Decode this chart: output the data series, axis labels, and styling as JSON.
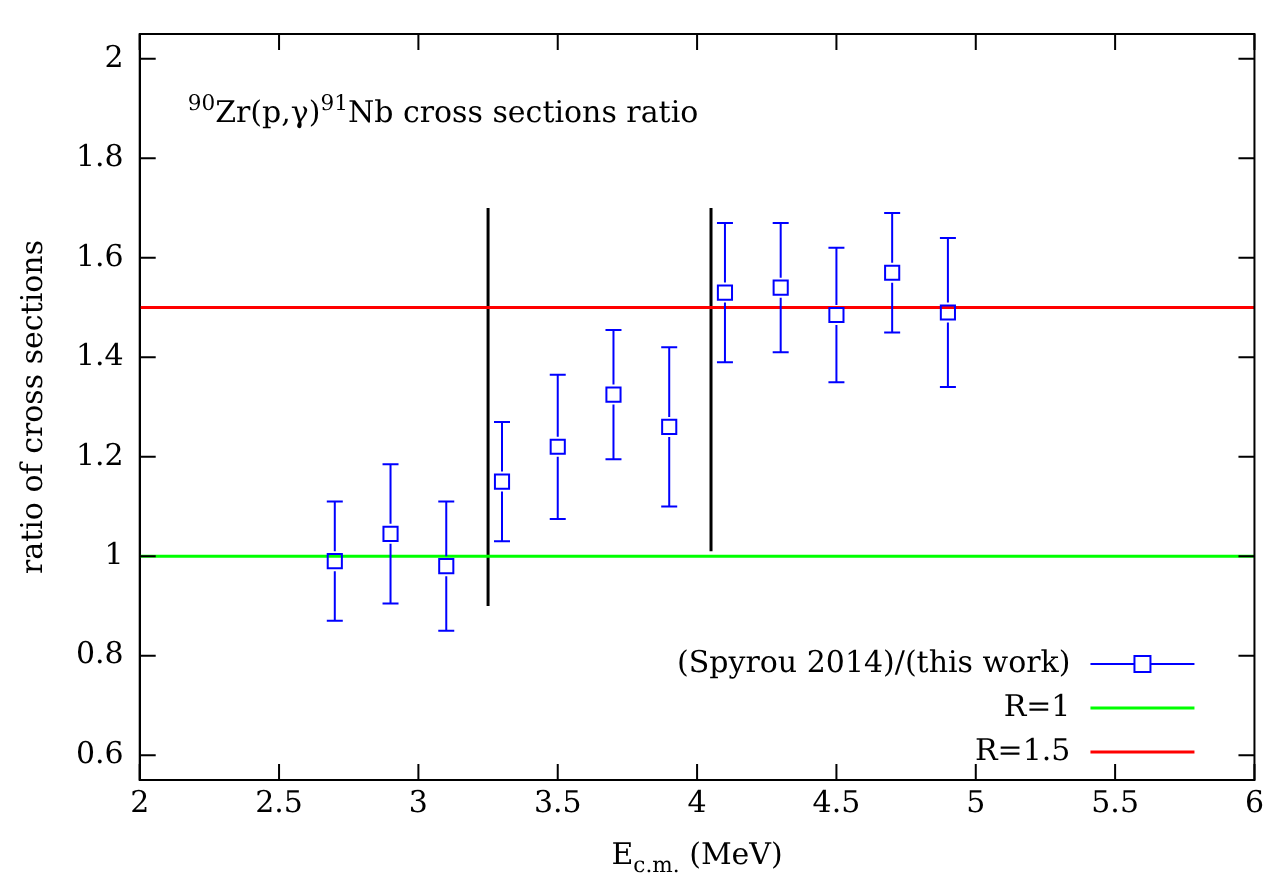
{
  "chart_data": {
    "type": "scatter",
    "title": "$^{90}$Zr(p,γ)$^{91}$Nb cross sections ratio",
    "xlabel": "E$_{c.m.}$ (MeV)",
    "ylabel": "ratio of cross sections",
    "xlim": [
      2,
      6
    ],
    "xticks": [
      2,
      2.5,
      3,
      3.5,
      4,
      4.5,
      5,
      5.5,
      6
    ],
    "ylim": [
      0.55,
      2.05
    ],
    "yticks": [
      0.6,
      0.8,
      1,
      1.2,
      1.4,
      1.6,
      1.8,
      2
    ],
    "grid": false,
    "legend": "bottom right",
    "marker": "square",
    "series": [
      {
        "name": "(Spyrou 2014)/(this work)",
        "color": "#0000ff",
        "x": [
          2.7,
          2.9,
          3.1,
          3.3,
          3.5,
          3.7,
          3.9,
          4.1,
          4.3,
          4.5,
          4.7,
          4.9
        ],
        "values": [
          0.99,
          1.045,
          0.98,
          1.15,
          1.22,
          1.325,
          1.26,
          1.53,
          1.54,
          1.485,
          1.57,
          1.49
        ],
        "errors": [
          0.12,
          0.14,
          0.13,
          0.12,
          0.145,
          0.13,
          0.16,
          0.14,
          0.13,
          0.135,
          0.12,
          0.15
        ]
      },
      {
        "name": "R=1",
        "type": "line",
        "marker": "none",
        "color": "#00ff00",
        "x": [
          2,
          6
        ],
        "values": [
          1,
          1
        ]
      },
      {
        "name": "R=1.5",
        "type": "line",
        "marker": "none",
        "color": "#ff0000",
        "x": [
          2,
          6
        ],
        "values": [
          1.5,
          1.5
        ]
      },
      {
        "type": "line",
        "marker": "none",
        "color": "#000000",
        "x": [
          3.25,
          3.25
        ],
        "values": [
          0.9,
          1.7
        ]
      },
      {
        "type": "line",
        "marker": "none",
        "color": "#000000",
        "x": [
          4.05,
          4.05
        ],
        "values": [
          1.01,
          1.7
        ]
      }
    ]
  }
}
